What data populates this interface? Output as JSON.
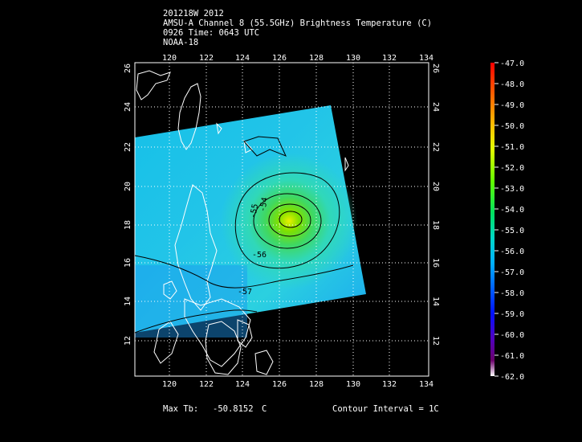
{
  "header": {
    "line1": "201218W 2012",
    "line2": "AMSU-A Channel 8 (55.5GHz) Brightness Temperature (C)",
    "line3": "0926 Time: 0643 UTC",
    "line4": "NOAA-18"
  },
  "map": {
    "lon_ticks": [
      "120",
      "122",
      "124",
      "126",
      "128",
      "130",
      "132",
      "134"
    ],
    "lat_ticks": [
      "12",
      "14",
      "16",
      "18",
      "20",
      "22",
      "24",
      "26"
    ],
    "contour_labels": [
      "-55",
      "-54",
      "-56",
      "-57"
    ]
  },
  "colorbar": {
    "labels": [
      "-47.0",
      "-48.0",
      "-49.0",
      "-50.0",
      "-51.0",
      "-52.0",
      "-53.0",
      "-54.0",
      "-55.0",
      "-56.0",
      "-57.0",
      "-58.0",
      "-59.0",
      "-60.0",
      "-61.0",
      "-62.0"
    ]
  },
  "footer": {
    "max_label": "Max Tb:",
    "max_value": "-50.8152",
    "max_unit": "C",
    "contour_interval": "Contour Interval = 1C"
  }
}
